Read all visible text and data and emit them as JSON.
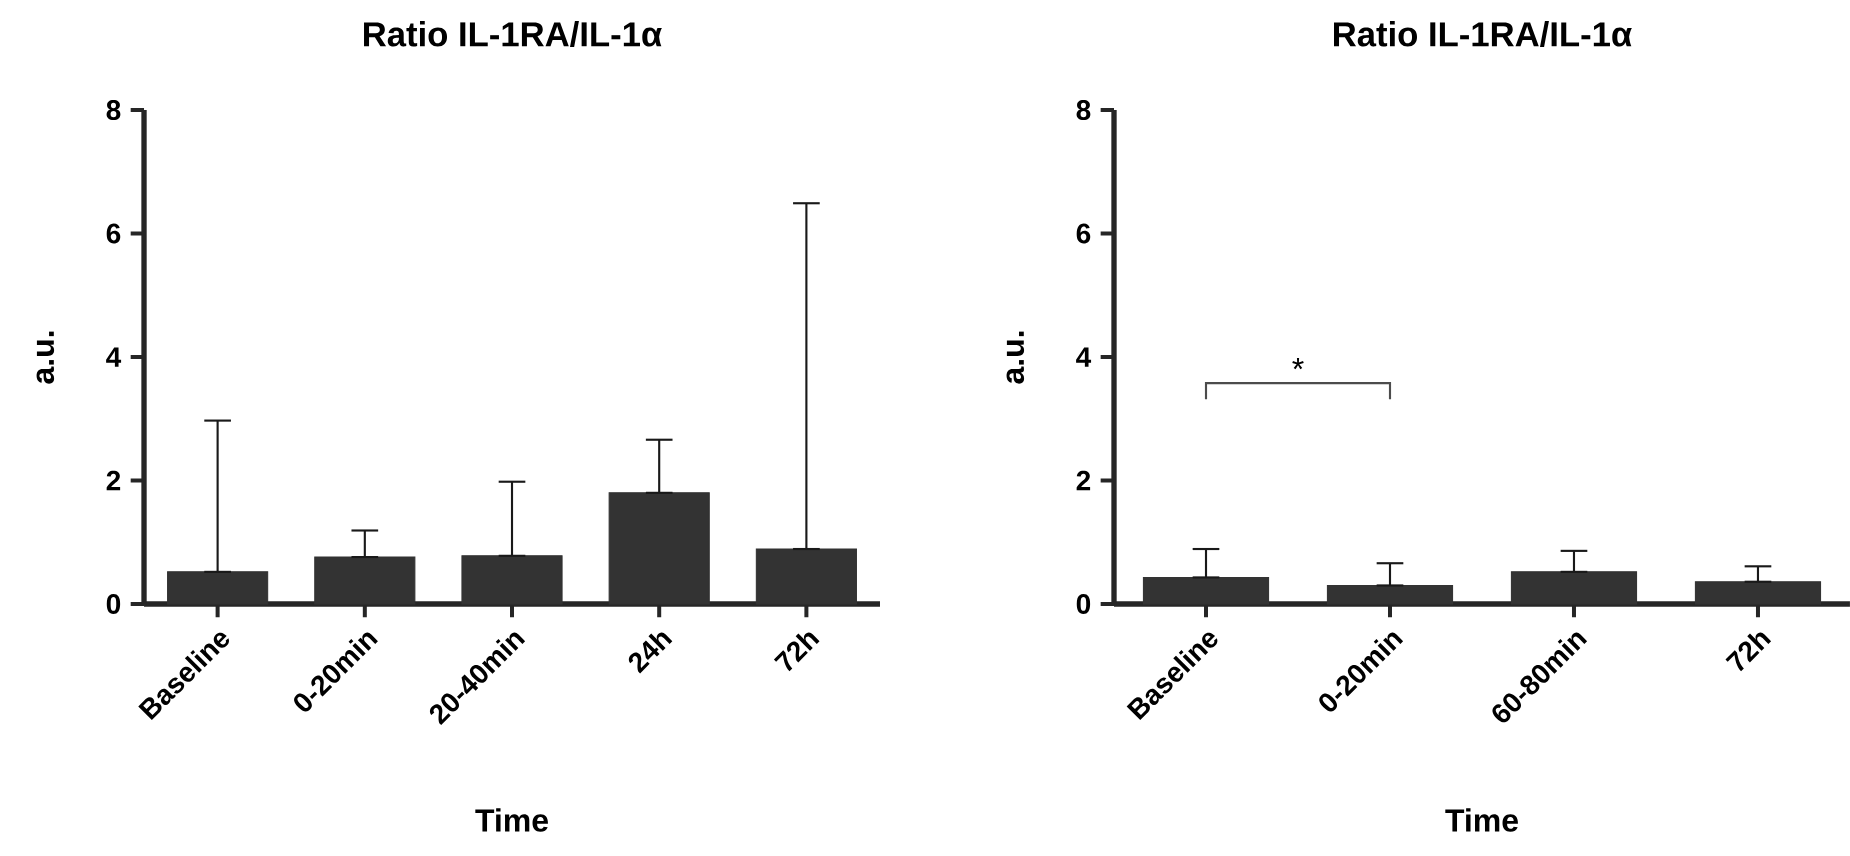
{
  "chart_data": [
    {
      "type": "bar",
      "title": "Ratio IL-1RA/IL-1α",
      "xlabel": "Time",
      "ylabel": "a.u.",
      "categories": [
        "Baseline",
        "0-20min",
        "20-40min",
        "24h",
        "72h"
      ],
      "values": [
        0.52,
        0.76,
        0.78,
        1.8,
        0.89
      ],
      "errors": [
        [
          0.52,
          2.97
        ],
        [
          0.76,
          1.19
        ],
        [
          0.78,
          1.98
        ],
        [
          1.8,
          2.66
        ],
        [
          0.89,
          6.49
        ]
      ],
      "color": "#333333",
      "ylim": [
        0,
        8
      ],
      "yticks": [
        0,
        2,
        4,
        6,
        8
      ]
    },
    {
      "type": "bar",
      "title": "Ratio IL-1RA/IL-1α",
      "xlabel": "Time",
      "ylabel": "a.u.",
      "categories": [
        "Baseline",
        "0-20min",
        "60-80min",
        "72h"
      ],
      "values": [
        0.43,
        0.3,
        0.52,
        0.36
      ],
      "errors": [
        [
          0.43,
          0.89
        ],
        [
          0.3,
          0.66
        ],
        [
          0.52,
          0.86
        ],
        [
          0.36,
          0.61
        ]
      ],
      "color": "#333333",
      "ylim": [
        0,
        8
      ],
      "yticks": [
        0,
        2,
        4,
        6,
        8
      ],
      "annotations": [
        "*"
      ]
    }
  ]
}
